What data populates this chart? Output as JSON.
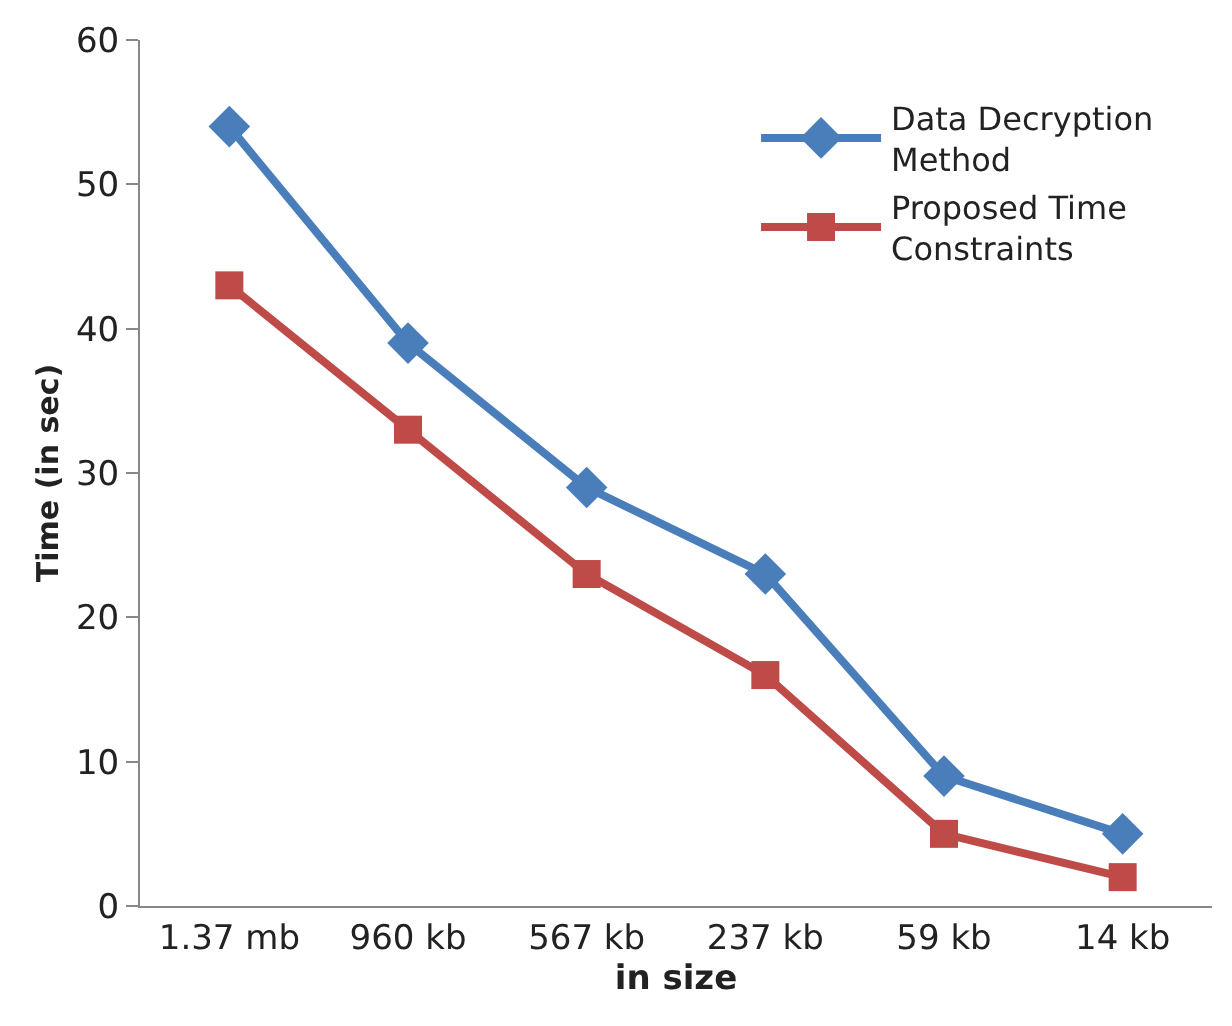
{
  "chart_data": {
    "type": "line",
    "xlabel": "in size",
    "ylabel": "Time (in sec)",
    "categories": [
      "1.37 mb",
      "960 kb",
      "567 kb",
      "237 kb",
      "59 kb",
      "14 kb"
    ],
    "series": [
      {
        "name": "Data Decryption Method",
        "color": "#4a7ebb",
        "marker": "diamond",
        "values": [
          54,
          39,
          29,
          23,
          9,
          5
        ]
      },
      {
        "name": "Proposed Time Constraints",
        "color": "#be4b48",
        "marker": "square",
        "values": [
          43,
          33,
          23,
          16,
          5,
          2
        ]
      }
    ],
    "ylim": [
      0,
      60
    ],
    "yticks": [
      0,
      10,
      20,
      30,
      40,
      50,
      60
    ],
    "legend": "top right"
  }
}
